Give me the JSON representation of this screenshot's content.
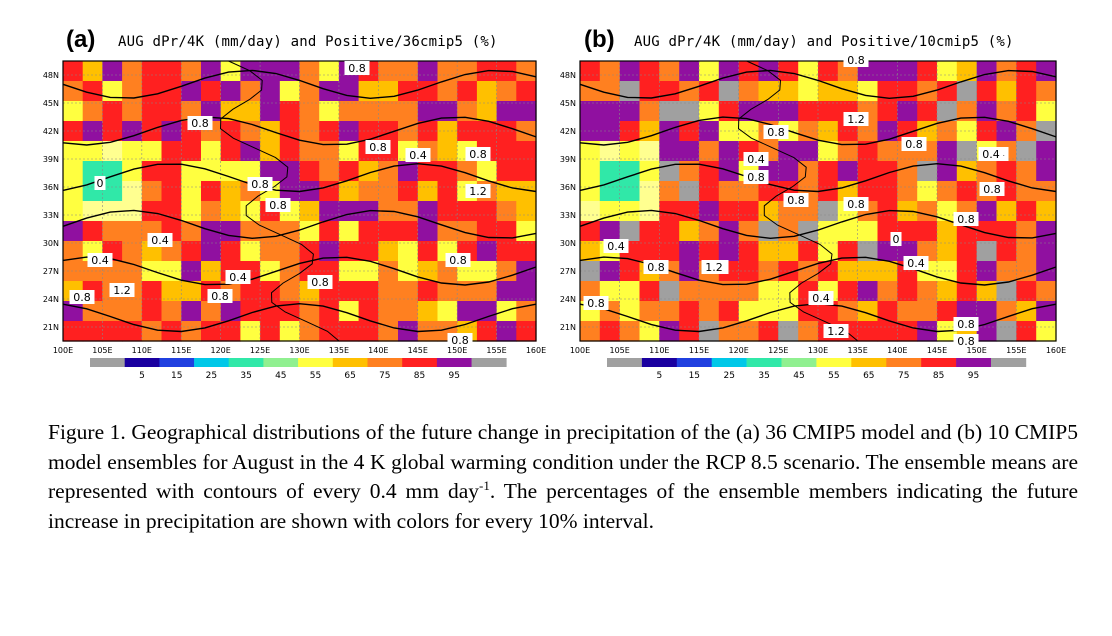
{
  "figure": {
    "panels": [
      {
        "label": "(a)",
        "title": "AUG dPr/4K (mm/day) and Positive/36cmip5 (%)",
        "lat_labels": [
          "48N",
          "45N",
          "42N",
          "39N",
          "36N",
          "33N",
          "30N",
          "27N",
          "24N",
          "21N"
        ],
        "lon_labels": [
          "100E",
          "105E",
          "110E",
          "115E",
          "120E",
          "125E",
          "130E",
          "135E",
          "140E",
          "145E",
          "150E",
          "155E",
          "160E"
        ],
        "contour_labels": [
          "0.8",
          "0.8",
          "0.8",
          "0.4",
          "0.8",
          "0.8",
          "1.2",
          "0",
          "0.8",
          "0.4",
          "0.4",
          "0.4",
          "0.8",
          "0.8",
          "1.2",
          "0.8",
          "0.8",
          "0.8"
        ]
      },
      {
        "label": "(b)",
        "title": "AUG dPr/4K (mm/day) and Positive/10cmip5 (%)",
        "lat_labels": [
          "48N",
          "45N",
          "42N",
          "39N",
          "36N",
          "33N",
          "30N",
          "27N",
          "24N",
          "21N"
        ],
        "lon_labels": [
          "100E",
          "105E",
          "110E",
          "115E",
          "120E",
          "125E",
          "130E",
          "135E",
          "140E",
          "145E",
          "150E",
          "155E",
          "160E"
        ],
        "contour_labels": [
          "0.8",
          "1.2",
          "0.8",
          "0.8",
          "0.4",
          "0.8",
          "0.4",
          "0.8",
          "0.8",
          "0.4",
          "0.4",
          "0",
          "0.8",
          "1.2",
          "0.8",
          "0.8",
          "0.4",
          "0.8",
          "0.8",
          "0.4",
          "1.2",
          "0.8",
          "0.8"
        ]
      }
    ],
    "colorbar": {
      "tick_labels": [
        "5",
        "15",
        "25",
        "35",
        "45",
        "55",
        "65",
        "75",
        "85",
        "95"
      ],
      "colors": [
        "#a0a0a0",
        "#1a00a0",
        "#2040e0",
        "#00c8e8",
        "#30e8a8",
        "#90f090",
        "#ffff40",
        "#ffc000",
        "#ff8020",
        "#ff2020",
        "#9010a0",
        "#a0a0a0"
      ]
    },
    "caption": {
      "text": "Figure 1. Geographical distributions of the future change in precipitation of the (a) 36 CMIP5 model and (b) 10 CMIP5 model ensembles for August in the 4 K global warming condition under the RCP 8.5 scenario. The ensemble means are represented with contours of every 0.4 mm day",
      "superscript": "-1",
      "text_end": ". The percentages of the ensemble members indicating the future increase in precipitation are shown with colors for every 10% interval."
    }
  }
}
